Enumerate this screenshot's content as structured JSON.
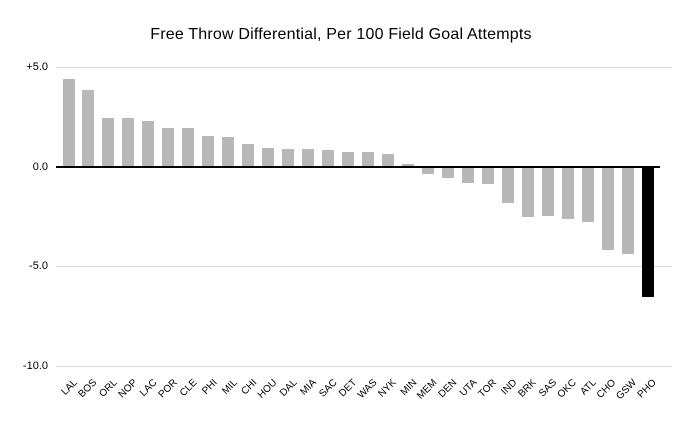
{
  "chart_data": {
    "type": "bar",
    "title": "Free Throw Differential, Per 100 Field Goal Attempts",
    "xlabel": "",
    "ylabel": "",
    "categories": [
      "LAL",
      "BOS",
      "ORL",
      "NOP",
      "LAC",
      "POR",
      "CLE",
      "PHI",
      "MIL",
      "CHI",
      "HOU",
      "DAL",
      "MIA",
      "SAC",
      "DET",
      "WAS",
      "NYK",
      "MIN",
      "MEM",
      "DEN",
      "UTA",
      "TOR",
      "IND",
      "BRK",
      "SAS",
      "OKC",
      "ATL",
      "CHO",
      "GSW",
      "PHO"
    ],
    "values": [
      4.4,
      3.85,
      2.45,
      2.45,
      2.3,
      1.95,
      1.95,
      1.55,
      1.5,
      1.15,
      0.95,
      0.9,
      0.9,
      0.85,
      0.75,
      0.75,
      0.65,
      0.15,
      -0.35,
      -0.55,
      -0.8,
      -0.85,
      -1.8,
      -2.5,
      -2.45,
      -2.6,
      -2.75,
      -4.15,
      -4.35,
      -6.5
    ],
    "y_ticks": [
      {
        "label": "+5.0",
        "value": 5
      },
      {
        "label": "0.0",
        "value": 0
      },
      {
        "label": "-5.0",
        "value": -5
      },
      {
        "label": "-10.0",
        "value": -10
      }
    ],
    "ylim": [
      -10,
      5
    ],
    "grid": true,
    "legend_position": "none",
    "colors": {
      "bar": "#b7b7b7",
      "highlight": "#000000",
      "grid": "#d9d9d9",
      "zero_line": "#000000",
      "background": "#ffffff",
      "text": "#000000"
    },
    "highlight_category": "PHO"
  }
}
